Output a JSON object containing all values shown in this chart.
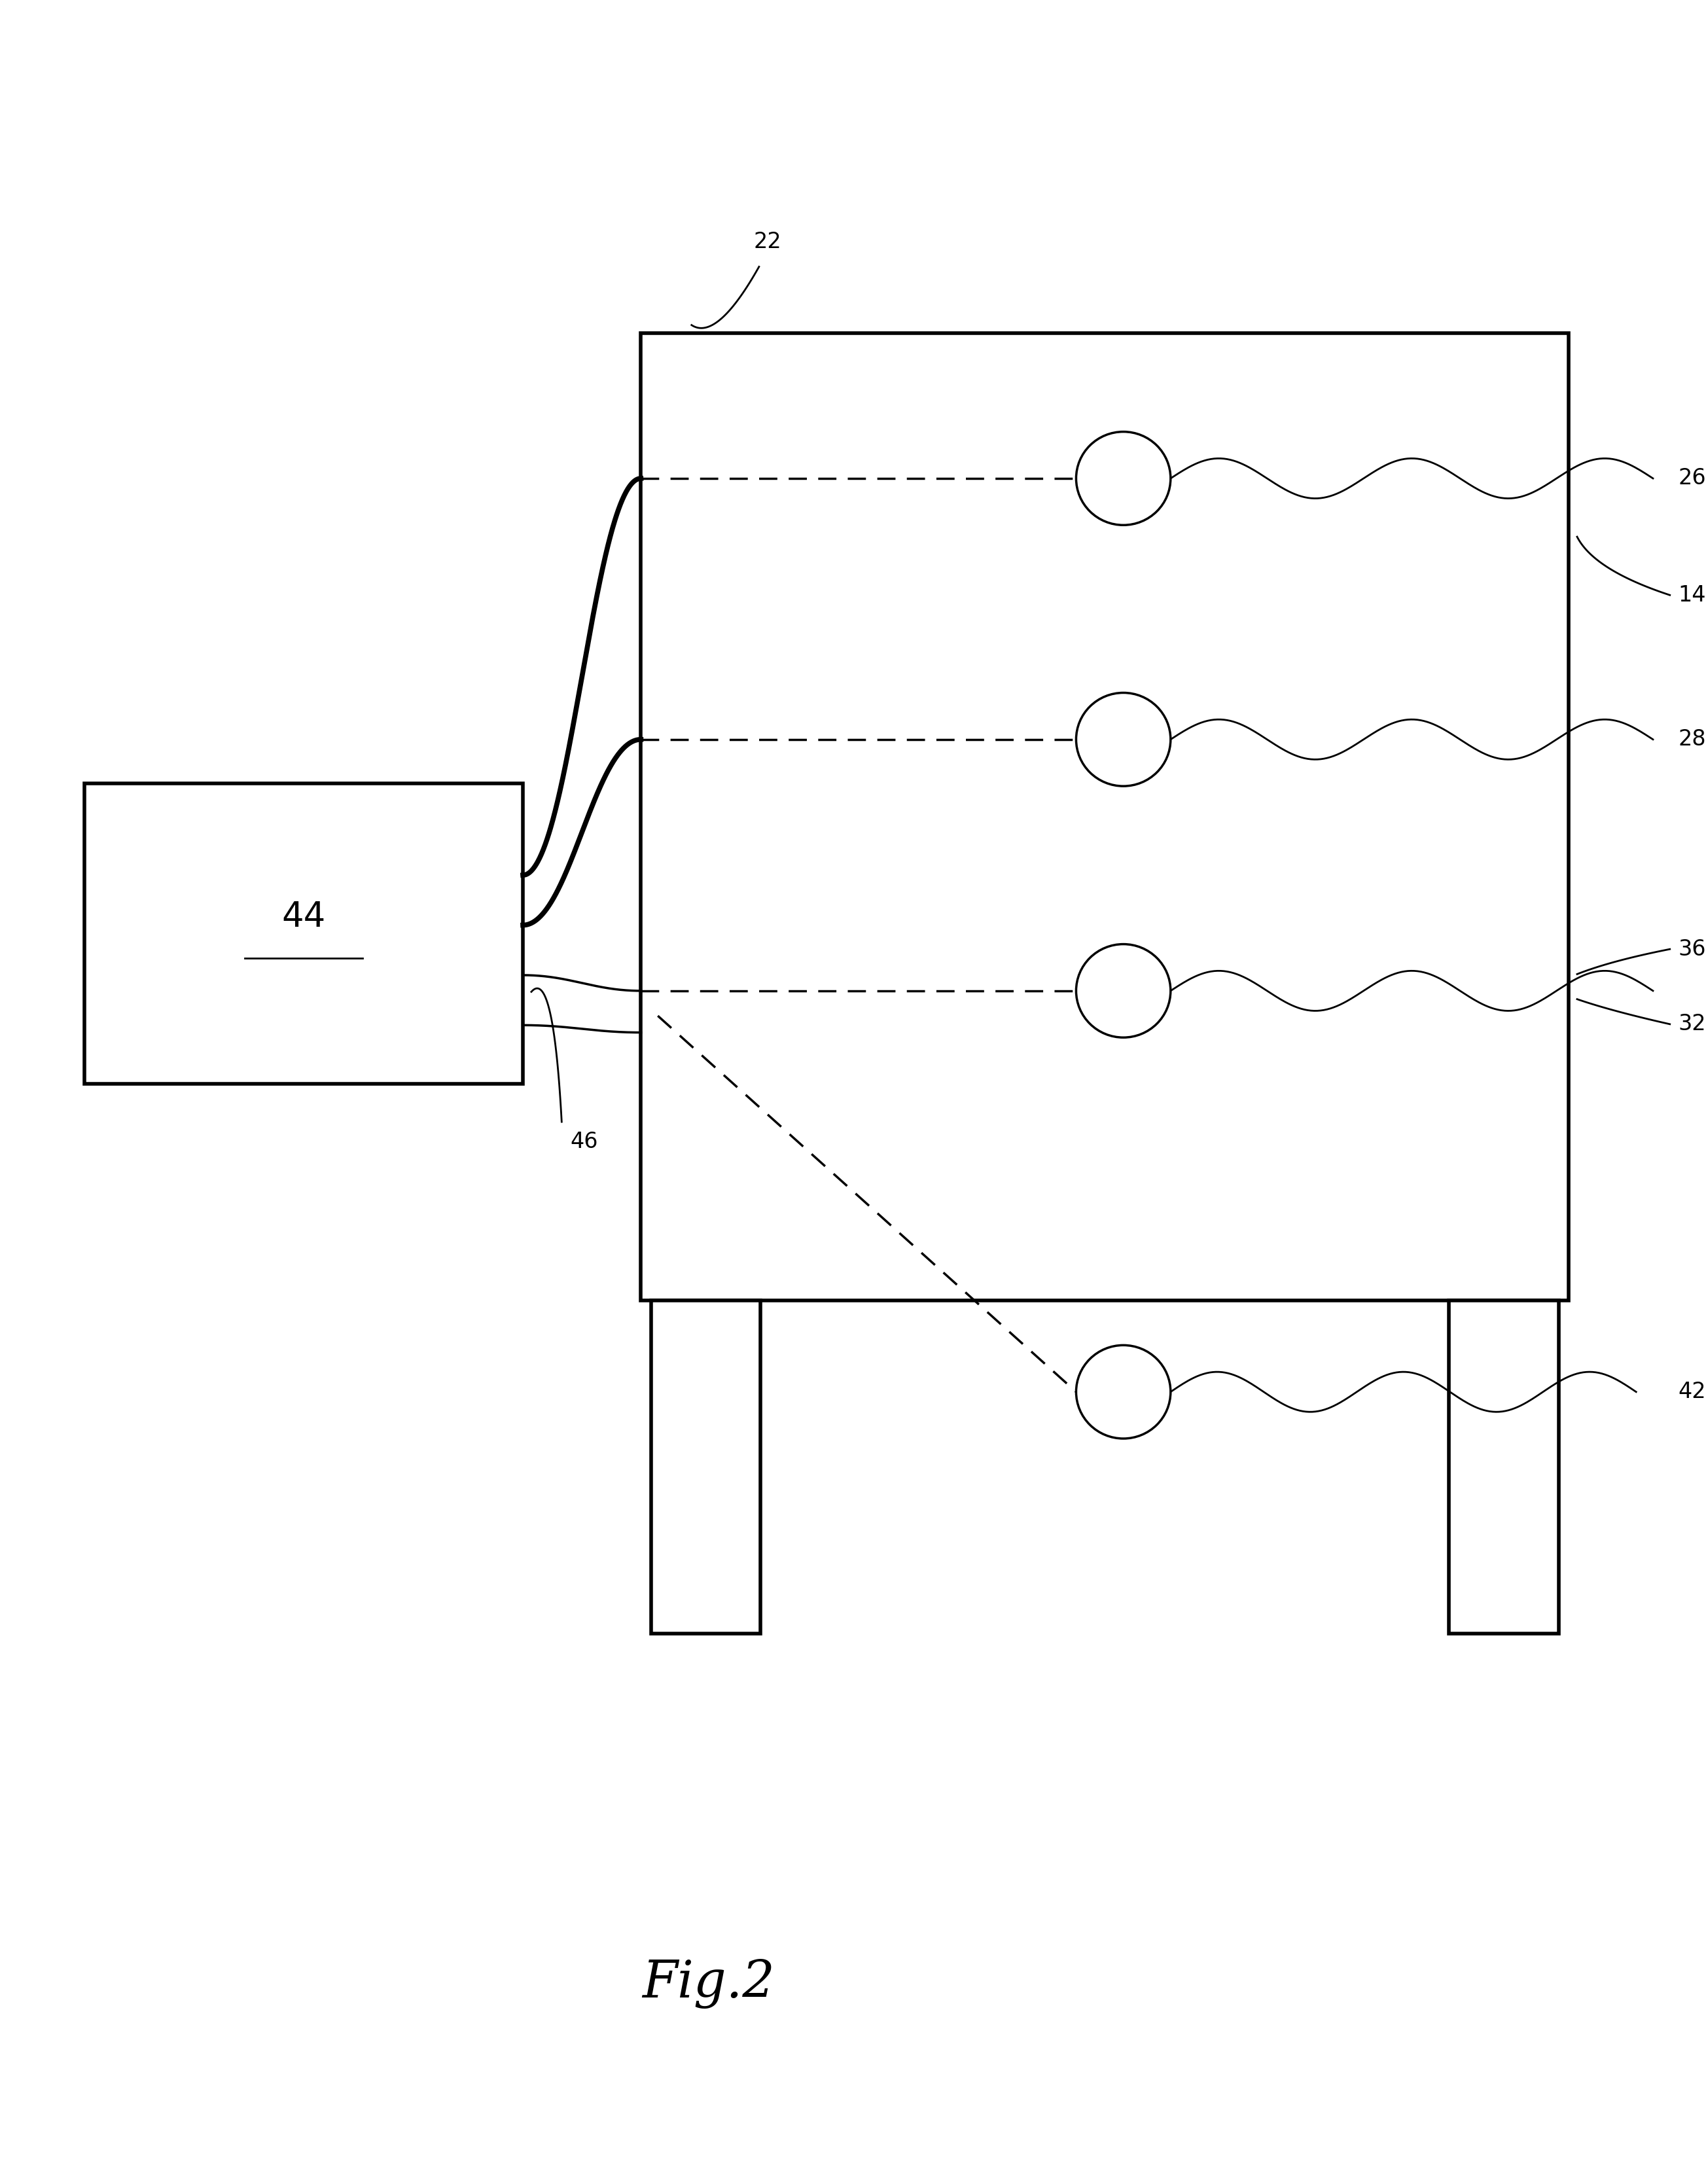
{
  "fig_width": 26.1,
  "fig_height": 33.11,
  "bg_color": "#ffffff",
  "title": "Fig.2",
  "title_fontsize": 56
}
